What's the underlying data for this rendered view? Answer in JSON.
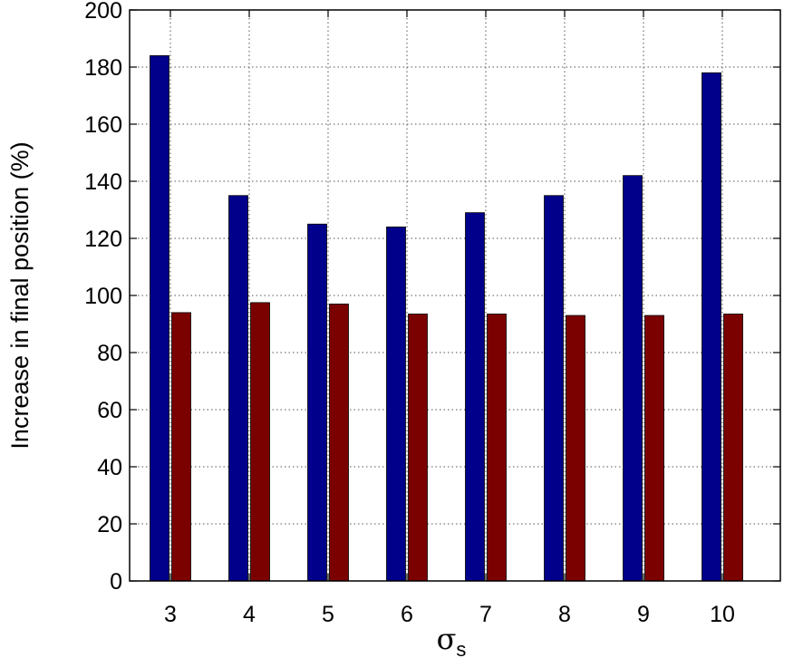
{
  "chart_data": {
    "type": "bar",
    "categories": [
      "3",
      "4",
      "5",
      "6",
      "7",
      "8",
      "9",
      "10"
    ],
    "series": [
      {
        "values": [
          184,
          135,
          125,
          124,
          129,
          135,
          142,
          178
        ],
        "color": "#00008b"
      },
      {
        "values": [
          94,
          97.5,
          97,
          93.5,
          93.5,
          93,
          93,
          93.5
        ],
        "color": "#7b0000"
      }
    ],
    "ylabel": "Increase in final position (%)",
    "xlabel_main": "σ",
    "xlabel_sub": "s",
    "ylim": [
      0,
      200
    ],
    "yticks": [
      0,
      20,
      40,
      60,
      80,
      100,
      120,
      140,
      160,
      180,
      200
    ],
    "grid": true,
    "legend": "none"
  }
}
